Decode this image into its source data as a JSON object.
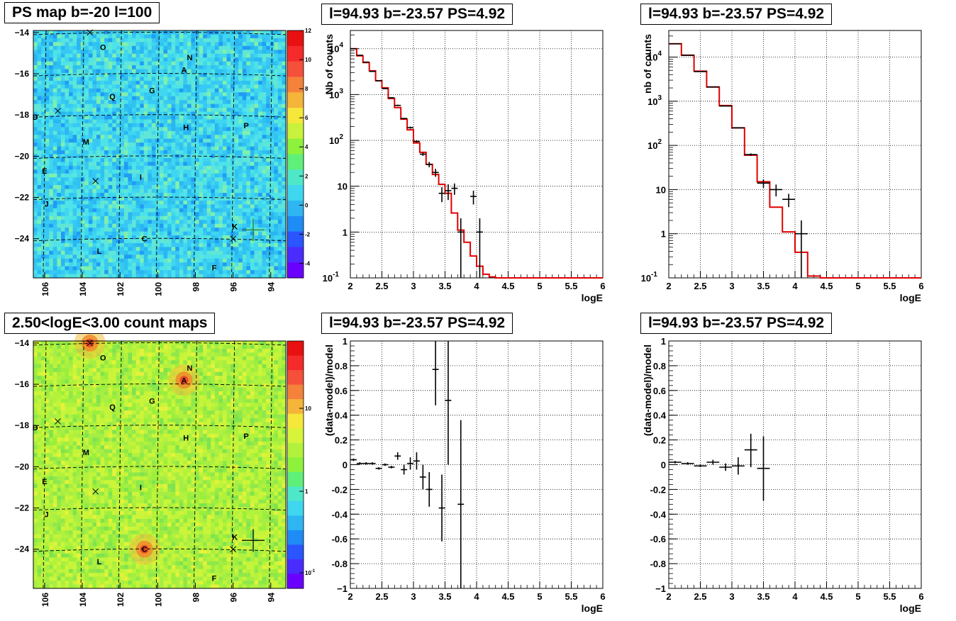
{
  "colors": {
    "hist": "#e00000",
    "points": "#000000",
    "grid": "#000000",
    "map1_bg": "#3fd6f0",
    "map2_bg": "#b2f23c"
  },
  "chart_data": [
    {
      "type": "heatmap",
      "title": "PS map b=-20 l=100",
      "x_ticks": [
        "106",
        "104",
        "102",
        "100",
        "98",
        "96",
        "94"
      ],
      "y_ticks": [
        "-14",
        "-16",
        "-18",
        "-20",
        "-22",
        "-24"
      ],
      "xlim": [
        106.6,
        93.2
      ],
      "ylim": [
        -25.9,
        -13.9
      ],
      "colorbar_ticks": [
        "12",
        "10",
        "8",
        "6",
        "4",
        "2",
        "0",
        "-2",
        "-4"
      ],
      "colorbar_range": [
        -5,
        12
      ],
      "colorbar_scale": "linear",
      "sources": [
        {
          "label": "O",
          "l": 102.9,
          "b": -14.7
        },
        {
          "label": "N",
          "l": 98.3,
          "b": -15.2
        },
        {
          "label": "A",
          "l": 98.6,
          "b": -15.8
        },
        {
          "label": "Q",
          "l": 102.4,
          "b": -17.1
        },
        {
          "label": "G",
          "l": 100.3,
          "b": -16.8
        },
        {
          "label": "D",
          "l": 106.5,
          "b": -18.1
        },
        {
          "label": "H",
          "l": 98.5,
          "b": -18.6
        },
        {
          "label": "P",
          "l": 95.3,
          "b": -18.5
        },
        {
          "label": "M",
          "l": 103.8,
          "b": -19.3
        },
        {
          "label": "E",
          "l": 106.0,
          "b": -20.7
        },
        {
          "label": "I",
          "l": 100.9,
          "b": -21.0
        },
        {
          "label": "J",
          "l": 105.9,
          "b": -22.3
        },
        {
          "label": "K",
          "l": 95.9,
          "b": -23.4
        },
        {
          "label": "C",
          "l": 100.7,
          "b": -24.0
        },
        {
          "label": "L",
          "l": 103.1,
          "b": -24.6
        },
        {
          "label": "F",
          "l": 97.0,
          "b": -25.4
        }
      ],
      "crosses": [
        {
          "l": 103.6,
          "b": -14.0
        },
        {
          "l": 105.3,
          "b": -17.8
        },
        {
          "l": 103.3,
          "b": -21.2
        },
        {
          "l": 96.0,
          "b": -24.0
        }
      ],
      "big_cross": {
        "l": 94.93,
        "b": -23.57
      }
    },
    {
      "type": "line",
      "title": "l=94.93 b=-23.57 PS=4.92",
      "xlabel": "logE",
      "ylabel": "Nb of counts",
      "xlim": [
        2,
        6
      ],
      "ylim": [
        0.1,
        25000
      ],
      "yscale": "log",
      "grid": true,
      "x_ticks": [
        "2",
        "2.5",
        "3",
        "3.5",
        "4",
        "4.5",
        "5",
        "5.5",
        "6"
      ],
      "y_ticks": [
        {
          "v": 10000,
          "b": "10",
          "e": "4"
        },
        {
          "v": 1000,
          "b": "10",
          "e": "3"
        },
        {
          "v": 100,
          "b": "10",
          "e": "2"
        },
        {
          "v": 10,
          "b": "10",
          "e": ""
        },
        {
          "v": 1,
          "b": "1",
          "e": ""
        },
        {
          "v": 0.1,
          "b": "10",
          "e": "-1"
        }
      ],
      "series": [
        {
          "kind": "hist",
          "edges": [
            2,
            2.1,
            2.2,
            2.3,
            2.4,
            2.5,
            2.6,
            2.7,
            2.8,
            2.9,
            3,
            3.1,
            3.2,
            3.3,
            3.4,
            3.5,
            3.6,
            3.7,
            3.8,
            3.9,
            4,
            4.1,
            4.2,
            4.3,
            6
          ],
          "values": [
            10000,
            7000,
            5000,
            3300,
            2000,
            1400,
            820,
            520,
            290,
            170,
            88,
            55,
            30,
            18,
            11,
            7,
            2.6,
            1.1,
            0.6,
            0.3,
            0.18,
            0.12,
            0.105,
            0.1
          ]
        },
        {
          "kind": "points",
          "x": [
            2.05,
            2.15,
            2.25,
            2.35,
            2.45,
            2.55,
            2.65,
            2.75,
            2.85,
            2.95,
            3.05,
            3.15,
            3.25,
            3.35,
            3.45,
            3.55,
            3.65,
            3.75,
            3.95,
            4.05
          ],
          "y": [
            10000,
            7200,
            5100,
            3200,
            2000,
            1350,
            850,
            580,
            300,
            190,
            95,
            50,
            30,
            20,
            7,
            8,
            9,
            1,
            6,
            1
          ],
          "ylo": [
            9900,
            7100,
            5050,
            3150,
            1960,
            1320,
            830,
            560,
            290,
            180,
            90,
            46,
            26,
            16,
            4.5,
            5,
            6.5,
            0.1,
            4,
            0.1
          ],
          "yhi": [
            10100,
            7300,
            5150,
            3250,
            2040,
            1380,
            870,
            600,
            310,
            200,
            100,
            54,
            34,
            24,
            9.5,
            11,
            11.5,
            2,
            8,
            2
          ]
        }
      ]
    },
    {
      "type": "line",
      "title": "l=94.93 b=-23.57 PS=4.92",
      "xlabel": "logE",
      "ylabel": "nb of counts",
      "xlim": [
        2,
        6
      ],
      "ylim": [
        0.1,
        40000
      ],
      "yscale": "log",
      "grid": true,
      "x_ticks": [
        "2",
        "2.5",
        "3",
        "3.5",
        "4",
        "4.5",
        "5",
        "5.5",
        "6"
      ],
      "y_ticks": [
        {
          "v": 10000,
          "b": "10",
          "e": "4"
        },
        {
          "v": 1000,
          "b": "10",
          "e": "3"
        },
        {
          "v": 100,
          "b": "10",
          "e": "2"
        },
        {
          "v": 10,
          "b": "10",
          "e": ""
        },
        {
          "v": 1,
          "b": "1",
          "e": ""
        },
        {
          "v": 0.1,
          "b": "10",
          "e": "-1"
        }
      ],
      "series": [
        {
          "kind": "hist",
          "edges": [
            2,
            2.2,
            2.4,
            2.6,
            2.8,
            3,
            3.2,
            3.4,
            3.6,
            3.8,
            4,
            4.2,
            4.4,
            6
          ],
          "values": [
            20000,
            11000,
            4800,
            2100,
            800,
            250,
            60,
            15,
            4,
            1.1,
            0.38,
            0.11,
            0.1
          ]
        },
        {
          "kind": "points",
          "x": [
            2.1,
            2.3,
            2.5,
            2.7,
            2.9,
            3.1,
            3.3,
            3.5,
            3.7,
            3.9,
            4.1
          ],
          "y": [
            20000,
            11000,
            4700,
            2100,
            780,
            250,
            62,
            14,
            10,
            6,
            1
          ],
          "ylo": [
            19800,
            10900,
            4650,
            2080,
            770,
            245,
            58,
            11,
            7,
            4,
            0.1
          ],
          "yhi": [
            20200,
            11100,
            4750,
            2120,
            790,
            255,
            66,
            17,
            13,
            8,
            2
          ]
        }
      ]
    },
    {
      "type": "heatmap",
      "title": "2.50<logE<3.00 count maps",
      "x_ticks": [
        "106",
        "104",
        "102",
        "100",
        "98",
        "96",
        "94"
      ],
      "y_ticks": [
        "-14",
        "-16",
        "-18",
        "-20",
        "-22",
        "-24"
      ],
      "xlim": [
        106.6,
        93.2
      ],
      "ylim": [
        -25.9,
        -13.9
      ],
      "colorbar_ticks": [
        "10",
        "1",
        "10-1"
      ],
      "colorbar_scale": "log",
      "sources": [
        {
          "label": "O",
          "l": 102.9,
          "b": -14.7
        },
        {
          "label": "N",
          "l": 98.3,
          "b": -15.2
        },
        {
          "label": "A",
          "l": 98.6,
          "b": -15.8
        },
        {
          "label": "Q",
          "l": 102.4,
          "b": -17.1
        },
        {
          "label": "G",
          "l": 100.3,
          "b": -16.8
        },
        {
          "label": "D",
          "l": 106.5,
          "b": -18.1
        },
        {
          "label": "H",
          "l": 98.5,
          "b": -18.6
        },
        {
          "label": "P",
          "l": 95.3,
          "b": -18.5
        },
        {
          "label": "M",
          "l": 103.8,
          "b": -19.3
        },
        {
          "label": "E",
          "l": 106.0,
          "b": -20.7
        },
        {
          "label": "I",
          "l": 100.9,
          "b": -21.0
        },
        {
          "label": "J",
          "l": 105.9,
          "b": -22.3
        },
        {
          "label": "K",
          "l": 95.9,
          "b": -23.4
        },
        {
          "label": "C",
          "l": 100.7,
          "b": -24.0
        },
        {
          "label": "L",
          "l": 103.1,
          "b": -24.6
        },
        {
          "label": "F",
          "l": 97.0,
          "b": -25.4
        }
      ],
      "crosses": [
        {
          "l": 103.6,
          "b": -14.0
        },
        {
          "l": 105.3,
          "b": -17.8
        },
        {
          "l": 103.3,
          "b": -21.2
        },
        {
          "l": 96.0,
          "b": -24.0
        }
      ],
      "big_cross": {
        "l": 94.93,
        "b": -23.57
      },
      "hotspots": [
        {
          "l": 98.6,
          "b": -15.8
        },
        {
          "l": 100.7,
          "b": -24.0
        },
        {
          "l": 103.6,
          "b": -14.0
        }
      ]
    },
    {
      "type": "scatter",
      "title": "l=94.93 b=-23.57 PS=4.92",
      "xlabel": "logE",
      "ylabel": "(data-model)/model",
      "xlim": [
        2,
        6
      ],
      "ylim": [
        -1,
        1
      ],
      "grid": true,
      "x_ticks": [
        "2",
        "2.5",
        "3",
        "3.5",
        "4",
        "4.5",
        "5",
        "5.5",
        "6"
      ],
      "y_ticks": [
        "1",
        "0.8",
        "0.6",
        "0.4",
        "0.2",
        "0",
        "-0.2",
        "-0.4",
        "-0.6",
        "-0.8",
        "-1"
      ],
      "series": [
        {
          "kind": "points",
          "x": [
            2.05,
            2.15,
            2.25,
            2.35,
            2.45,
            2.55,
            2.65,
            2.75,
            2.85,
            2.95,
            3.05,
            3.15,
            3.25,
            3.35,
            3.45,
            3.55,
            3.75
          ],
          "y": [
            0.04,
            0.01,
            0.01,
            0.01,
            -0.03,
            0.0,
            -0.02,
            0.07,
            -0.04,
            0.01,
            0.03,
            -0.1,
            -0.2,
            0.77,
            -0.35,
            0.52,
            -0.32
          ],
          "ylo": [
            0.03,
            0.0,
            0.0,
            0.0,
            -0.04,
            -0.01,
            -0.03,
            0.04,
            -0.08,
            -0.04,
            -0.04,
            -0.2,
            -0.34,
            0.48,
            -0.62,
            0.0,
            -1
          ],
          "yhi": [
            0.05,
            0.02,
            0.02,
            0.02,
            -0.02,
            0.01,
            -0.01,
            0.1,
            0.0,
            0.06,
            0.1,
            0.0,
            -0.06,
            1.0,
            -0.08,
            1.0,
            0.36
          ]
        }
      ]
    },
    {
      "type": "scatter",
      "title": "l=94.93 b=-23.57 PS=4.92",
      "xlabel": "logE",
      "ylabel": "(data-model)/model",
      "xlim": [
        2,
        6
      ],
      "ylim": [
        -1,
        1
      ],
      "grid": true,
      "x_ticks": [
        "2",
        "2.5",
        "3",
        "3.5",
        "4",
        "4.5",
        "5",
        "5.5",
        "6"
      ],
      "y_ticks": [
        "1",
        "0.8",
        "0.6",
        "0.4",
        "0.2",
        "0",
        "-0.2",
        "-0.4",
        "-0.6",
        "-0.8",
        "-1"
      ],
      "series": [
        {
          "kind": "points",
          "x": [
            2.1,
            2.3,
            2.5,
            2.7,
            2.9,
            3.1,
            3.3,
            3.5
          ],
          "y": [
            0.02,
            0.01,
            -0.01,
            0.02,
            -0.02,
            -0.01,
            0.12,
            -0.03
          ],
          "ylo": [
            0.01,
            0.0,
            -0.02,
            0.0,
            -0.05,
            -0.08,
            -0.02,
            -0.29
          ],
          "yhi": [
            0.03,
            0.02,
            0.0,
            0.04,
            0.01,
            0.06,
            0.25,
            0.23
          ]
        }
      ]
    }
  ]
}
